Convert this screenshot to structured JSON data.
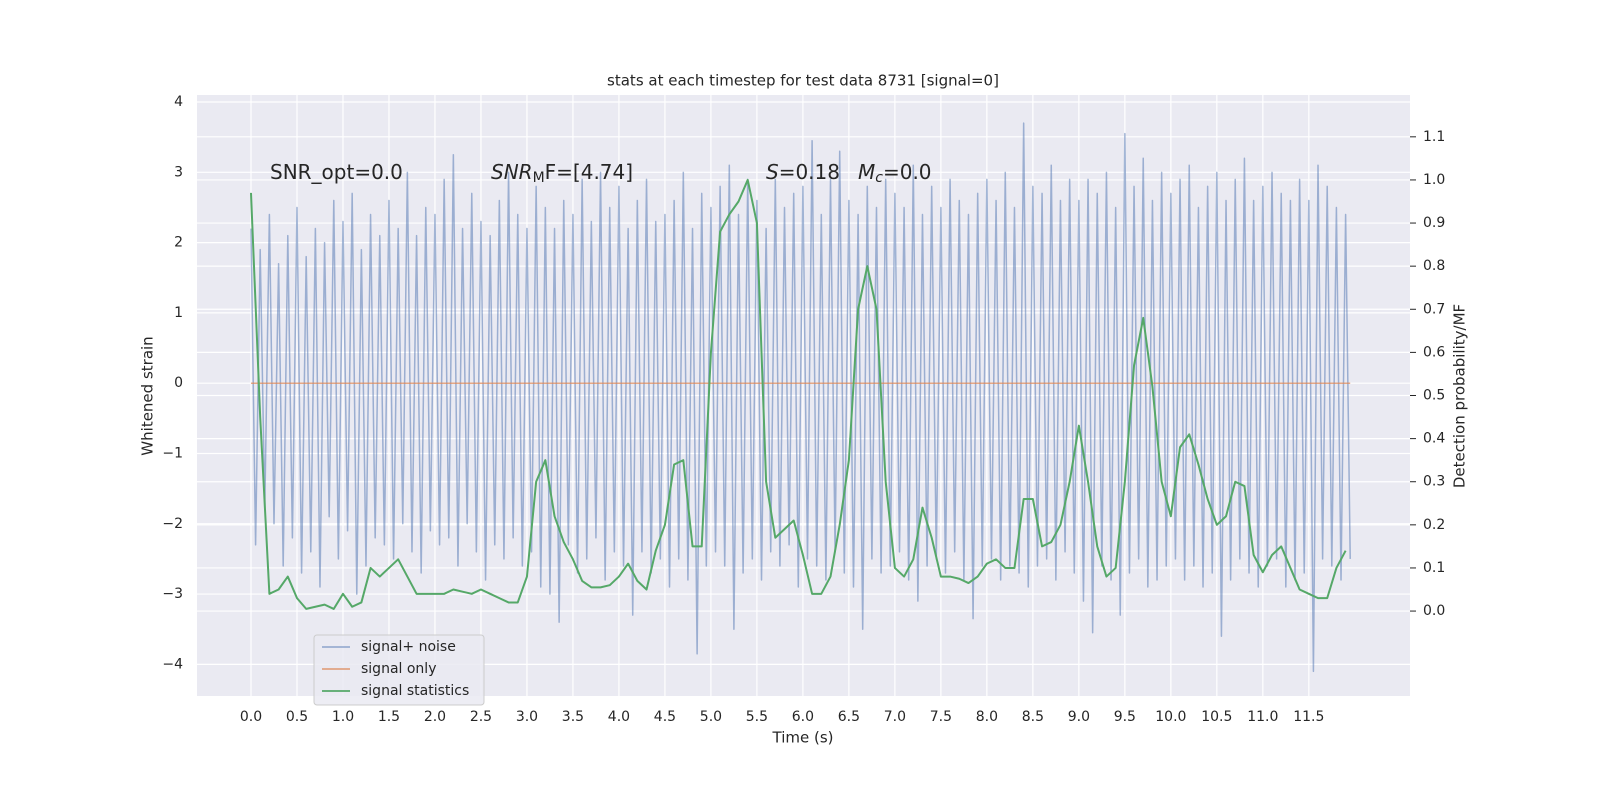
{
  "chart_data": {
    "type": "line",
    "title": "stats at each timestep for test data 8731 [signal=0]",
    "xlabel": "Time (s)",
    "ylabel": "Whitened strain",
    "y2label": "Detection probability/MF",
    "annotations": [
      [
        "SNR_opt=0.0"
      ],
      [
        "SNR",
        "M",
        "F=[4.74]"
      ],
      [
        "S",
        "=0.18"
      ],
      [
        "M",
        "c",
        "=0.0"
      ]
    ],
    "xlim": [
      -0.587,
      12.6
    ],
    "ylim": [
      -4.45,
      4.1
    ],
    "y2lim": [
      -0.197,
      1.197
    ],
    "xticks": [
      {
        "value": 0,
        "label": "0.0"
      },
      0.5,
      {
        "value": 1,
        "label": "1.0"
      },
      1.5,
      {
        "value": 2,
        "label": "2.0"
      },
      2.5,
      {
        "value": 3,
        "label": "3.0"
      },
      3.5,
      {
        "value": 4,
        "label": "4.0"
      },
      4.5,
      {
        "value": 5,
        "label": "5.0"
      },
      5.5,
      {
        "value": 6,
        "label": "6.0"
      },
      6.5,
      {
        "value": 7,
        "label": "7.0"
      },
      7.5,
      {
        "value": 8,
        "label": "8.0"
      },
      8.5,
      {
        "value": 9,
        "label": "9.0"
      },
      9.5,
      {
        "value": 10,
        "label": "10.0"
      },
      10.5,
      {
        "value": 11,
        "label": "11.0"
      },
      11.5
    ],
    "yticks": [
      {
        "value": -4,
        "label": "−4"
      },
      {
        "value": -3,
        "label": "−3"
      },
      {
        "value": -2,
        "label": "−2"
      },
      {
        "value": -1,
        "label": "−1"
      },
      0,
      1,
      2,
      3,
      4
    ],
    "y2ticks": [
      {
        "value": 0,
        "label": "0.0"
      },
      0.1,
      0.2,
      0.3,
      0.4,
      0.5,
      0.6,
      0.7,
      0.8,
      0.9,
      {
        "value": 1,
        "label": "1.0"
      },
      1.1
    ],
    "grid": true,
    "legend": "lower left",
    "series": [
      {
        "name": "signal+ noise",
        "color": "#4c72b0",
        "opacity": 0.5,
        "x": [
          0,
          0.05,
          0.1,
          0.15,
          0.2,
          0.25,
          0.3,
          0.35,
          0.4,
          0.45,
          0.5,
          0.55,
          0.6,
          0.65,
          0.7,
          0.75,
          0.8,
          0.85,
          0.9,
          0.95,
          1,
          1.05,
          1.1,
          1.15,
          1.2,
          1.25,
          1.3,
          1.35,
          1.4,
          1.45,
          1.5,
          1.55,
          1.6,
          1.65,
          1.7,
          1.75,
          1.8,
          1.85,
          1.9,
          1.95,
          2,
          2.05,
          2.1,
          2.15,
          2.2,
          2.25,
          2.3,
          2.35,
          2.4,
          2.45,
          2.5,
          2.55,
          2.6,
          2.65,
          2.7,
          2.75,
          2.8,
          2.85,
          2.9,
          2.95,
          3,
          3.05,
          3.1,
          3.15,
          3.2,
          3.25,
          3.3,
          3.35,
          3.4,
          3.45,
          3.5,
          3.55,
          3.6,
          3.65,
          3.7,
          3.75,
          3.8,
          3.85,
          3.9,
          3.95,
          4,
          4.05,
          4.1,
          4.15,
          4.2,
          4.25,
          4.3,
          4.35,
          4.4,
          4.45,
          4.5,
          4.55,
          4.6,
          4.65,
          4.7,
          4.75,
          4.8,
          4.85,
          4.9,
          4.95,
          5,
          5.05,
          5.1,
          5.15,
          5.2,
          5.25,
          5.3,
          5.35,
          5.4,
          5.45,
          5.5,
          5.55,
          5.6,
          5.65,
          5.7,
          5.75,
          5.8,
          5.85,
          5.9,
          5.95,
          6,
          6.05,
          6.1,
          6.15,
          6.2,
          6.25,
          6.3,
          6.35,
          6.4,
          6.45,
          6.5,
          6.55,
          6.6,
          6.65,
          6.7,
          6.75,
          6.8,
          6.85,
          6.9,
          6.95,
          7,
          7.05,
          7.1,
          7.15,
          7.2,
          7.25,
          7.3,
          7.35,
          7.4,
          7.45,
          7.5,
          7.55,
          7.6,
          7.65,
          7.7,
          7.75,
          7.8,
          7.85,
          7.9,
          7.95,
          8,
          8.05,
          8.1,
          8.15,
          8.2,
          8.25,
          8.3,
          8.35,
          8.4,
          8.45,
          8.5,
          8.55,
          8.6,
          8.65,
          8.7,
          8.75,
          8.8,
          8.85,
          8.9,
          8.95,
          9,
          9.05,
          9.1,
          9.15,
          9.2,
          9.25,
          9.3,
          9.35,
          9.4,
          9.45,
          9.5,
          9.55,
          9.6,
          9.65,
          9.7,
          9.75,
          9.8,
          9.85,
          9.9,
          9.95,
          10,
          10.05,
          10.1,
          10.15,
          10.2,
          10.25,
          10.3,
          10.35,
          10.4,
          10.45,
          10.5,
          10.55,
          10.6,
          10.65,
          10.7,
          10.75,
          10.8,
          10.85,
          10.9,
          10.95,
          11,
          11.05,
          11.1,
          11.15,
          11.2,
          11.25,
          11.3,
          11.35,
          11.4,
          11.45,
          11.5,
          11.55,
          11.6,
          11.65,
          11.7,
          11.75,
          11.8,
          11.85,
          11.9,
          11.95
        ],
        "values": [
          2.2,
          -2.3,
          1.9,
          -1.8,
          2.4,
          -2.0,
          1.7,
          -2.6,
          2.1,
          -2.2,
          2.5,
          -2.7,
          1.8,
          -2.4,
          2.2,
          -2.9,
          2.0,
          -1.9,
          2.6,
          -2.5,
          2.3,
          -2.1,
          2.7,
          -3.0,
          1.9,
          -2.6,
          2.4,
          -2.2,
          2.1,
          -2.3,
          2.6,
          -2.5,
          2.2,
          -2.0,
          3.0,
          -2.4,
          2.1,
          -2.7,
          2.5,
          -2.1,
          2.4,
          -2.3,
          2.9,
          -2.2,
          3.25,
          -2.6,
          2.2,
          -2.0,
          2.7,
          -2.4,
          2.3,
          -2.8,
          2.1,
          -2.3,
          2.6,
          -2.5,
          3.0,
          -2.2,
          2.4,
          -2.6,
          2.2,
          -2.4,
          2.8,
          -2.9,
          2.5,
          -3.0,
          2.2,
          -3.4,
          2.6,
          -2.3,
          2.4,
          -2.7,
          2.9,
          -2.5,
          2.3,
          -2.2,
          3.0,
          -2.8,
          2.5,
          -2.4,
          2.8,
          -2.6,
          2.2,
          -3.3,
          2.6,
          -2.4,
          2.9,
          -2.7,
          2.3,
          -2.5,
          2.4,
          -2.9,
          2.6,
          -2.5,
          3.0,
          -2.8,
          2.2,
          -3.85,
          2.7,
          -2.6,
          2.5,
          -2.4,
          2.8,
          -2.6,
          3.1,
          -3.5,
          2.4,
          -2.7,
          2.9,
          -2.5,
          2.6,
          -2.8,
          2.2,
          -2.4,
          2.9,
          -2.6,
          2.5,
          -2.3,
          2.7,
          -2.9,
          2.8,
          -2.5,
          3.45,
          -2.6,
          2.4,
          -2.8,
          2.9,
          -2.4,
          3.3,
          -2.7,
          2.6,
          -2.9,
          2.4,
          -3.5,
          2.8,
          -2.5,
          2.5,
          -2.7,
          2.9,
          -2.6,
          2.7,
          -2.4,
          2.5,
          -2.8,
          3.1,
          -3.1,
          2.4,
          -2.6,
          2.8,
          -2.5,
          2.5,
          -2.7,
          2.9,
          -2.4,
          2.6,
          -2.8,
          2.4,
          -3.35,
          2.7,
          -2.6,
          2.9,
          -2.5,
          2.6,
          -2.8,
          3.0,
          -2.6,
          2.5,
          -2.7,
          3.7,
          -2.9,
          2.8,
          -2.6,
          2.7,
          -2.5,
          3.1,
          -2.8,
          2.6,
          -2.4,
          2.9,
          -2.7,
          2.6,
          -3.1,
          2.9,
          -3.55,
          2.7,
          -2.6,
          3.0,
          -2.8,
          2.5,
          -3.3,
          3.55,
          -2.7,
          2.8,
          -2.5,
          3.2,
          -2.9,
          2.6,
          -2.8,
          3.0,
          -2.6,
          2.7,
          -2.5,
          2.9,
          -2.8,
          3.1,
          -2.6,
          2.5,
          -2.9,
          2.8,
          -2.7,
          3.0,
          -3.6,
          2.6,
          -2.8,
          2.9,
          -2.5,
          3.2,
          -2.7,
          2.6,
          -2.9,
          2.8,
          -2.6,
          3.0,
          -2.5,
          2.7,
          -2.9,
          2.6,
          -2.8,
          2.9,
          -2.7,
          2.6,
          -4.1,
          3.1,
          -2.5,
          2.8,
          -2.6,
          2.5,
          -2.8,
          2.4,
          -2.5
        ]
      },
      {
        "name": "signal only",
        "color": "#dd8452",
        "opacity": 0.7,
        "x": [
          0,
          11.95
        ],
        "values": [
          0,
          0
        ]
      },
      {
        "name": "signal statistics",
        "color": "#55a868",
        "axis": "y2",
        "x": [
          0,
          0.1,
          0.2,
          0.3,
          0.4,
          0.5,
          0.6,
          0.7,
          0.8,
          0.9,
          1,
          1.1,
          1.2,
          1.3,
          1.4,
          1.5,
          1.6,
          1.7,
          1.8,
          1.9,
          2,
          2.1,
          2.2,
          2.3,
          2.4,
          2.5,
          2.6,
          2.7,
          2.8,
          2.9,
          3,
          3.1,
          3.2,
          3.3,
          3.4,
          3.5,
          3.6,
          3.7,
          3.8,
          3.9,
          4,
          4.1,
          4.2,
          4.3,
          4.4,
          4.5,
          4.6,
          4.7,
          4.8,
          4.9,
          5,
          5.1,
          5.2,
          5.3,
          5.4,
          5.5,
          5.6,
          5.7,
          5.8,
          5.9,
          6,
          6.1,
          6.2,
          6.3,
          6.4,
          6.5,
          6.6,
          6.7,
          6.8,
          6.9,
          7,
          7.1,
          7.2,
          7.3,
          7.4,
          7.5,
          7.6,
          7.7,
          7.8,
          7.9,
          8,
          8.1,
          8.2,
          8.3,
          8.4,
          8.5,
          8.6,
          8.7,
          8.8,
          8.9,
          9,
          9.1,
          9.2,
          9.3,
          9.4,
          9.5,
          9.6,
          9.7,
          9.8,
          9.9,
          10,
          10.1,
          10.2,
          10.3,
          10.4,
          10.5,
          10.6,
          10.7,
          10.8,
          10.9,
          11,
          11.1,
          11.2,
          11.3,
          11.4,
          11.5,
          11.6,
          11.7,
          11.8,
          11.9
        ],
        "values": [
          0.97,
          0.45,
          0.04,
          0.05,
          0.08,
          0.03,
          0.005,
          0.01,
          0.015,
          0.005,
          0.04,
          0.01,
          0.02,
          0.1,
          0.08,
          0.1,
          0.12,
          0.08,
          0.04,
          0.04,
          0.04,
          0.04,
          0.05,
          0.045,
          0.04,
          0.05,
          0.04,
          0.03,
          0.02,
          0.02,
          0.08,
          0.3,
          0.35,
          0.22,
          0.16,
          0.12,
          0.07,
          0.055,
          0.055,
          0.06,
          0.08,
          0.11,
          0.07,
          0.05,
          0.14,
          0.2,
          0.34,
          0.35,
          0.15,
          0.15,
          0.6,
          0.88,
          0.92,
          0.95,
          1.0,
          0.9,
          0.3,
          0.17,
          0.19,
          0.21,
          0.13,
          0.04,
          0.04,
          0.08,
          0.2,
          0.35,
          0.7,
          0.8,
          0.7,
          0.3,
          0.1,
          0.08,
          0.12,
          0.24,
          0.17,
          0.08,
          0.08,
          0.075,
          0.065,
          0.08,
          0.11,
          0.12,
          0.1,
          0.1,
          0.26,
          0.26,
          0.15,
          0.16,
          0.2,
          0.3,
          0.43,
          0.3,
          0.15,
          0.08,
          0.1,
          0.3,
          0.57,
          0.68,
          0.52,
          0.3,
          0.22,
          0.38,
          0.41,
          0.34,
          0.26,
          0.2,
          0.22,
          0.3,
          0.29,
          0.13,
          0.09,
          0.13,
          0.15,
          0.1,
          0.05,
          0.04,
          0.03,
          0.03,
          0.1,
          0.14
        ]
      }
    ]
  }
}
